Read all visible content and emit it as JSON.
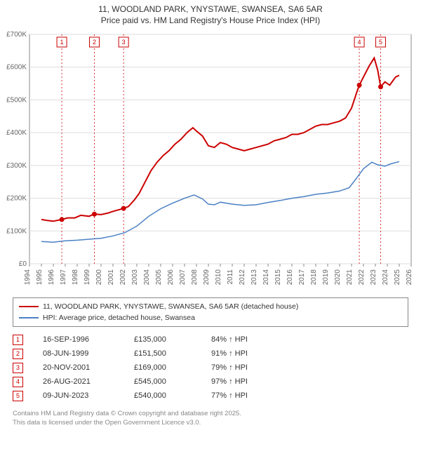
{
  "title_line1": "11, WOODLAND PARK, YNYSTAWE, SWANSEA, SA6 5AR",
  "title_line2": "Price paid vs. HM Land Registry's House Price Index (HPI)",
  "chart": {
    "type": "line",
    "background_color": "#ffffff",
    "plot_background": "#ffffff",
    "grid_color": "#dddddd",
    "axis_color": "#888888",
    "xlim": [
      1994,
      2026
    ],
    "ylim": [
      0,
      700000
    ],
    "ytick_step": 100000,
    "yticks": [
      "£0",
      "£100K",
      "£200K",
      "£300K",
      "£400K",
      "£500K",
      "£600K",
      "£700K"
    ],
    "xticks": [
      1994,
      1995,
      1996,
      1997,
      1998,
      1999,
      2000,
      2001,
      2002,
      2003,
      2004,
      2005,
      2006,
      2007,
      2008,
      2009,
      2010,
      2011,
      2012,
      2013,
      2014,
      2015,
      2016,
      2017,
      2018,
      2019,
      2020,
      2021,
      2022,
      2023,
      2024,
      2025,
      2026
    ],
    "series": [
      {
        "name": "price_paid",
        "label": "11, WOODLAND PARK, YNYSTAWE, SWANSEA, SA6 5AR (detached house)",
        "color": "#cc0000",
        "line_width": 2,
        "points": [
          [
            1995.0,
            135000
          ],
          [
            1995.5,
            132000
          ],
          [
            1996.0,
            130000
          ],
          [
            1996.7,
            135000
          ],
          [
            1997.2,
            140000
          ],
          [
            1997.8,
            140000
          ],
          [
            1998.3,
            148000
          ],
          [
            1999.0,
            145000
          ],
          [
            1999.4,
            151500
          ],
          [
            2000.0,
            150000
          ],
          [
            2000.6,
            155000
          ],
          [
            2001.0,
            160000
          ],
          [
            2001.5,
            165000
          ],
          [
            2001.9,
            169000
          ],
          [
            2002.3,
            175000
          ],
          [
            2002.8,
            195000
          ],
          [
            2003.2,
            215000
          ],
          [
            2003.7,
            250000
          ],
          [
            2004.2,
            285000
          ],
          [
            2004.7,
            310000
          ],
          [
            2005.2,
            330000
          ],
          [
            2005.7,
            345000
          ],
          [
            2006.2,
            365000
          ],
          [
            2006.7,
            380000
          ],
          [
            2007.2,
            400000
          ],
          [
            2007.7,
            415000
          ],
          [
            2008.0,
            405000
          ],
          [
            2008.5,
            390000
          ],
          [
            2009.0,
            360000
          ],
          [
            2009.5,
            355000
          ],
          [
            2010.0,
            370000
          ],
          [
            2010.5,
            365000
          ],
          [
            2011.0,
            355000
          ],
          [
            2011.5,
            350000
          ],
          [
            2012.0,
            345000
          ],
          [
            2012.5,
            350000
          ],
          [
            2013.0,
            355000
          ],
          [
            2013.5,
            360000
          ],
          [
            2014.0,
            365000
          ],
          [
            2014.5,
            375000
          ],
          [
            2015.0,
            380000
          ],
          [
            2015.5,
            385000
          ],
          [
            2016.0,
            395000
          ],
          [
            2016.5,
            395000
          ],
          [
            2017.0,
            400000
          ],
          [
            2017.5,
            410000
          ],
          [
            2018.0,
            420000
          ],
          [
            2018.5,
            425000
          ],
          [
            2019.0,
            425000
          ],
          [
            2019.5,
            430000
          ],
          [
            2020.0,
            435000
          ],
          [
            2020.5,
            445000
          ],
          [
            2021.0,
            475000
          ],
          [
            2021.5,
            530000
          ],
          [
            2021.65,
            545000
          ],
          [
            2022.0,
            570000
          ],
          [
            2022.5,
            605000
          ],
          [
            2022.9,
            628000
          ],
          [
            2023.2,
            590000
          ],
          [
            2023.44,
            540000
          ],
          [
            2023.8,
            555000
          ],
          [
            2024.2,
            545000
          ],
          [
            2024.7,
            570000
          ],
          [
            2025.0,
            575000
          ]
        ]
      },
      {
        "name": "hpi",
        "label": "HPI: Average price, detached house, Swansea",
        "color": "#4a80c4",
        "line_width": 1.5,
        "points": [
          [
            1995.0,
            68000
          ],
          [
            1996.0,
            66000
          ],
          [
            1997.0,
            70000
          ],
          [
            1998.0,
            72000
          ],
          [
            1999.0,
            75000
          ],
          [
            2000.0,
            78000
          ],
          [
            2001.0,
            85000
          ],
          [
            2002.0,
            95000
          ],
          [
            2003.0,
            115000
          ],
          [
            2004.0,
            145000
          ],
          [
            2005.0,
            168000
          ],
          [
            2006.0,
            185000
          ],
          [
            2007.0,
            200000
          ],
          [
            2007.8,
            210000
          ],
          [
            2008.5,
            198000
          ],
          [
            2009.0,
            182000
          ],
          [
            2009.5,
            180000
          ],
          [
            2010.0,
            188000
          ],
          [
            2011.0,
            182000
          ],
          [
            2012.0,
            178000
          ],
          [
            2013.0,
            180000
          ],
          [
            2014.0,
            187000
          ],
          [
            2015.0,
            193000
          ],
          [
            2016.0,
            200000
          ],
          [
            2017.0,
            205000
          ],
          [
            2018.0,
            212000
          ],
          [
            2019.0,
            216000
          ],
          [
            2020.0,
            222000
          ],
          [
            2020.8,
            232000
          ],
          [
            2021.5,
            265000
          ],
          [
            2022.0,
            290000
          ],
          [
            2022.7,
            310000
          ],
          [
            2023.2,
            302000
          ],
          [
            2023.8,
            298000
          ],
          [
            2024.3,
            305000
          ],
          [
            2025.0,
            312000
          ]
        ]
      }
    ],
    "markers": [
      {
        "n": 1,
        "x": 1996.71,
        "y": 135000
      },
      {
        "n": 2,
        "x": 1999.44,
        "y": 151500
      },
      {
        "n": 3,
        "x": 2001.89,
        "y": 169000
      },
      {
        "n": 4,
        "x": 2021.65,
        "y": 545000
      },
      {
        "n": 5,
        "x": 2023.44,
        "y": 540000
      }
    ]
  },
  "legend": {
    "border_color": "#888888",
    "items": [
      {
        "color": "#cc0000",
        "label": "11, WOODLAND PARK, YNYSTAWE, SWANSEA, SA6 5AR (detached house)"
      },
      {
        "color": "#4a80c4",
        "label": "HPI: Average price, detached house, Swansea"
      }
    ]
  },
  "transactions": [
    {
      "n": "1",
      "date": "16-SEP-1996",
      "price": "£135,000",
      "hpi": "84% ↑ HPI"
    },
    {
      "n": "2",
      "date": "08-JUN-1999",
      "price": "£151,500",
      "hpi": "91% ↑ HPI"
    },
    {
      "n": "3",
      "date": "20-NOV-2001",
      "price": "£169,000",
      "hpi": "79% ↑ HPI"
    },
    {
      "n": "4",
      "date": "26-AUG-2021",
      "price": "£545,000",
      "hpi": "97% ↑ HPI"
    },
    {
      "n": "5",
      "date": "09-JUN-2023",
      "price": "£540,000",
      "hpi": "77% ↑ HPI"
    }
  ],
  "footer_line1": "Contains HM Land Registry data © Crown copyright and database right 2025.",
  "footer_line2": "This data is licensed under the Open Government Licence v3.0."
}
